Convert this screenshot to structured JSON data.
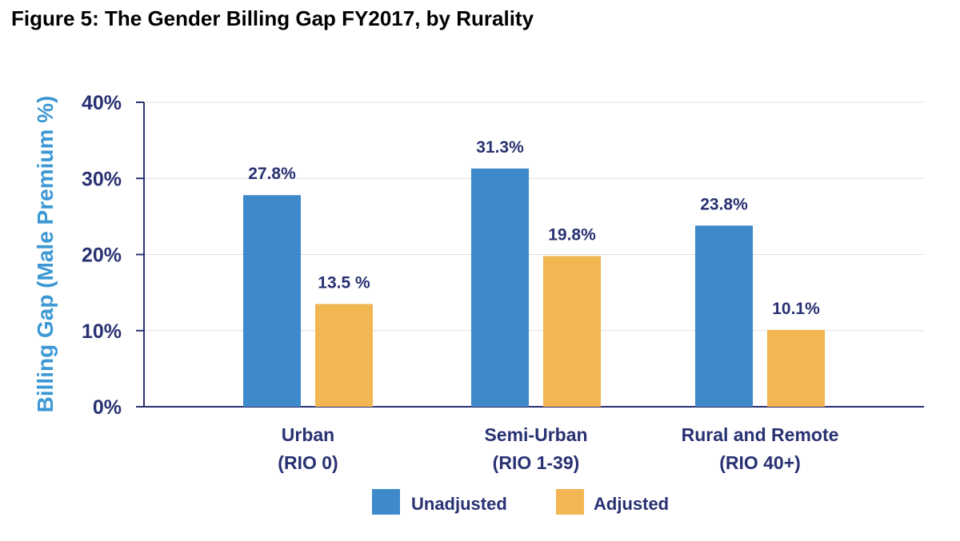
{
  "figure_title": "Figure 5: The Gender Billing Gap FY2017, by Rurality",
  "colors": {
    "unadjusted": "#3d89c9",
    "adjusted": "#f2b652",
    "axis": "#283172",
    "ytitle": "#3d98d4",
    "grid": "#dddddd"
  },
  "chart_data": {
    "type": "bar",
    "title": "Figure 5: The Gender Billing Gap FY2017, by Rurality",
    "ylabel": "Billing Gap (Male Premium %)",
    "xlabel": "",
    "ylim": [
      0,
      40
    ],
    "yticks": [
      0,
      10,
      20,
      30,
      40
    ],
    "ytick_labels": [
      "0%",
      "10%",
      "20%",
      "30%",
      "40%"
    ],
    "grid": true,
    "legend_position": "bottom-center",
    "categories": [
      {
        "line1": "Urban",
        "line2": "(RIO 0)"
      },
      {
        "line1": "Semi-Urban",
        "line2": "(RIO 1-39)"
      },
      {
        "line1": "Rural and Remote",
        "line2": "(RIO 40+)"
      }
    ],
    "series": [
      {
        "name": "Unadjusted",
        "values": [
          27.8,
          31.3,
          23.8
        ],
        "labels": [
          "27.8%",
          "31.3%",
          "23.8%"
        ]
      },
      {
        "name": "Adjusted",
        "values": [
          13.5,
          19.8,
          10.1
        ],
        "labels": [
          "13.5 %",
          "19.8%",
          "10.1%"
        ]
      }
    ]
  }
}
